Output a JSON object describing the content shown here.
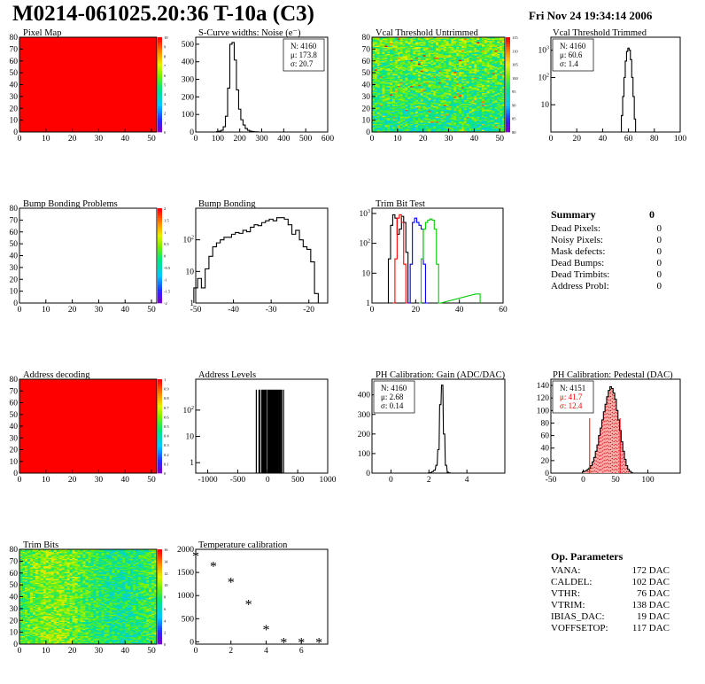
{
  "header": {
    "title": "M0214-061025.20:36 T-10a (C3)",
    "date": "Fri Nov 24 19:34:14 2006"
  },
  "colors": {
    "red": "#ff0000",
    "green": "#00cc00",
    "blue": "#0000ff",
    "pedestal_fill": "#ffaaaa"
  },
  "summary": {
    "title": "Summary",
    "total": "0",
    "rows": [
      {
        "label": "Dead Pixels:",
        "value": "0"
      },
      {
        "label": "Noisy Pixels:",
        "value": "0"
      },
      {
        "label": "Mask defects:",
        "value": "0"
      },
      {
        "label": "Dead Bumps:",
        "value": "0"
      },
      {
        "label": "Dead Trimbits:",
        "value": "0"
      },
      {
        "label": "Address Probl:",
        "value": "0"
      }
    ]
  },
  "op_params": {
    "title": "Op. Parameters",
    "rows": [
      {
        "label": "VANA:",
        "value": "172 DAC"
      },
      {
        "label": "CALDEL:",
        "value": "102 DAC"
      },
      {
        "label": "VTHR:",
        "value": "76 DAC"
      },
      {
        "label": "VTRIM:",
        "value": "138 DAC"
      },
      {
        "label": "IBIAS_DAC:",
        "value": "19 DAC"
      },
      {
        "label": "VOFFSETOP:",
        "value": "117 DAC"
      }
    ]
  },
  "chart_data": [
    {
      "id": "pixel-map",
      "type": "heatmap",
      "title": "Pixel Map",
      "xlim": [
        0,
        52
      ],
      "ylim": [
        0,
        80
      ],
      "xticks": [
        "0",
        "10",
        "20",
        "30",
        "40",
        "50"
      ],
      "yticks": [
        "0",
        "10",
        "20",
        "30",
        "40",
        "50",
        "60",
        "70",
        "80"
      ],
      "fill": "uniform",
      "value": 10,
      "zlim": [
        0,
        10
      ],
      "zticks": [
        "0",
        "1",
        "2",
        "3",
        "4",
        "5",
        "6",
        "7",
        "8",
        "9",
        "10"
      ]
    },
    {
      "id": "scurve-widths",
      "type": "histogram",
      "title": "S-Curve widths: Noise (e⁻)",
      "xlim": [
        0,
        600
      ],
      "ylim": [
        0,
        540
      ],
      "log": false,
      "xticks": [
        "0",
        "100",
        "200",
        "300",
        "400",
        "500",
        "600"
      ],
      "yticks": [
        "0",
        "100",
        "200",
        "300",
        "400",
        "500"
      ],
      "stats": [
        "N: 4160",
        "μ: 173.8",
        "σ: 20.7"
      ],
      "bin_width": 10,
      "x": [
        100,
        110,
        120,
        130,
        140,
        150,
        160,
        170,
        180,
        190,
        200,
        210,
        220,
        230,
        240,
        250,
        260,
        270,
        280,
        290
      ],
      "values": [
        2,
        5,
        10,
        30,
        90,
        250,
        500,
        510,
        410,
        240,
        130,
        70,
        40,
        20,
        10,
        5,
        3,
        1,
        1,
        0
      ]
    },
    {
      "id": "vcal-untrimmed",
      "type": "heatmap",
      "title": "Vcal Threshold Untrimmed",
      "xlim": [
        0,
        52
      ],
      "ylim": [
        0,
        80
      ],
      "xticks": [
        "0",
        "10",
        "20",
        "30",
        "40",
        "50"
      ],
      "yticks": [
        "0",
        "10",
        "20",
        "30",
        "40",
        "50",
        "60",
        "70",
        "80"
      ],
      "fill": "noise",
      "zlim": [
        80,
        115
      ],
      "zticks": [
        "80",
        "85",
        "90",
        "95",
        "100",
        "105",
        "110",
        "115"
      ]
    },
    {
      "id": "vcal-trimmed",
      "type": "histogram",
      "title": "Vcal Threshold Trimmed",
      "xlim": [
        0,
        100
      ],
      "ylim": [
        1,
        3000
      ],
      "log": true,
      "xticks": [
        "0",
        "20",
        "40",
        "60",
        "80",
        "100"
      ],
      "yticks": [
        {
          "v": 10,
          "t": "10"
        },
        {
          "v": 100,
          "t": "10²"
        },
        {
          "v": 1000,
          "t": "10³"
        }
      ],
      "stats": [
        "N: 4160",
        "μ: 60.6",
        "σ:  1.4"
      ],
      "bin_width": 1,
      "x": [
        54,
        55,
        56,
        57,
        58,
        59,
        60,
        61,
        62,
        63,
        64,
        65,
        66
      ],
      "values": [
        1,
        4,
        20,
        100,
        400,
        900,
        1200,
        1000,
        450,
        100,
        20,
        3,
        1
      ]
    },
    {
      "id": "bump-problems",
      "type": "heatmap",
      "title": "Bump Bonding Problems",
      "xlim": [
        0,
        52
      ],
      "ylim": [
        0,
        80
      ],
      "xticks": [
        "0",
        "10",
        "20",
        "30",
        "40",
        "50"
      ],
      "yticks": [
        "0",
        "10",
        "20",
        "30",
        "40",
        "50",
        "60",
        "70",
        "80"
      ],
      "fill": "empty",
      "zlim": [
        -2,
        2
      ],
      "zticks": [
        "-2",
        "-1.5",
        "-1",
        "-0.5",
        "0",
        "0.5",
        "1",
        "1.5",
        "2"
      ]
    },
    {
      "id": "bump-bonding",
      "type": "histogram",
      "title": "Bump Bonding",
      "xlim": [
        -50,
        -15
      ],
      "ylim": [
        1,
        1000
      ],
      "log": true,
      "xticks": [
        "-50",
        "-40",
        "-30",
        "-20"
      ],
      "yticks": [
        {
          "v": 1,
          "t": "1"
        },
        {
          "v": 10,
          "t": "10"
        },
        {
          "v": 100,
          "t": "10²"
        }
      ],
      "bin_width": 1,
      "x": [
        -50,
        -49,
        -48,
        -47,
        -46,
        -45,
        -44,
        -43,
        -42,
        -41,
        -40,
        -39,
        -38,
        -37,
        -36,
        -35,
        -34,
        -33,
        -32,
        -31,
        -30,
        -29,
        -28,
        -27,
        -26,
        -25,
        -24,
        -23,
        -22,
        -21,
        -20,
        -19,
        -18,
        -17
      ],
      "values": [
        3,
        6,
        3,
        12,
        30,
        60,
        80,
        100,
        120,
        120,
        150,
        170,
        160,
        200,
        180,
        250,
        300,
        280,
        350,
        400,
        450,
        400,
        500,
        500,
        450,
        300,
        150,
        200,
        100,
        60,
        50,
        20,
        2,
        1
      ]
    },
    {
      "id": "trim-bit-test",
      "type": "line",
      "title": "Trim Bit Test",
      "xlim": [
        0,
        60
      ],
      "ylim": [
        1,
        1500
      ],
      "log": true,
      "xticks": [
        "0",
        "20",
        "40",
        "60"
      ],
      "yticks": [
        {
          "v": 1,
          "t": "1"
        },
        {
          "v": 10,
          "t": "10"
        },
        {
          "v": 100,
          "t": "10²"
        },
        {
          "v": 1000,
          "t": "10³"
        }
      ],
      "series": [
        {
          "color": "#000000",
          "x": [
            7,
            8,
            9,
            10,
            11,
            12,
            13,
            14,
            15,
            16,
            17
          ],
          "values": [
            1,
            30,
            400,
            900,
            700,
            200,
            300,
            800,
            500,
            50,
            1
          ]
        },
        {
          "color": "#ff0000",
          "x": [
            10,
            11,
            12,
            13,
            14,
            15,
            16
          ],
          "values": [
            1,
            30,
            700,
            900,
            500,
            20,
            1
          ]
        },
        {
          "color": "#0000ff",
          "x": [
            17,
            18,
            19,
            20,
            21,
            22,
            23,
            24,
            25
          ],
          "values": [
            1,
            20,
            500,
            700,
            500,
            400,
            300,
            20,
            1
          ]
        },
        {
          "color": "#00cc00",
          "x": [
            22,
            23,
            24,
            25,
            26,
            27,
            28,
            29,
            30,
            31,
            48,
            49
          ],
          "values": [
            1,
            30,
            300,
            500,
            600,
            650,
            600,
            300,
            20,
            1,
            2,
            2
          ]
        }
      ]
    },
    {
      "id": "address-decoding",
      "type": "heatmap",
      "title": "Address decoding",
      "xlim": [
        0,
        52
      ],
      "ylim": [
        0,
        80
      ],
      "xticks": [
        "0",
        "10",
        "20",
        "30",
        "40",
        "50"
      ],
      "yticks": [
        "0",
        "10",
        "20",
        "30",
        "40",
        "50",
        "60",
        "70",
        "80"
      ],
      "fill": "uniform",
      "value": 1,
      "zlim": [
        0,
        1
      ],
      "zticks": [
        "0",
        "0.1",
        "0.2",
        "0.3",
        "0.4",
        "0.5",
        "0.6",
        "0.7",
        "0.8",
        "0.9",
        "1"
      ]
    },
    {
      "id": "address-levels",
      "type": "histogram",
      "title": "Address Levels",
      "xlim": [
        -1200,
        1000
      ],
      "ylim": [
        0.4,
        1500
      ],
      "log": true,
      "xticks": [
        "-1000",
        "-500",
        "0",
        "500",
        "1000"
      ],
      "yticks": [
        {
          "v": 1,
          "t": "1"
        },
        {
          "v": 10,
          "t": "10"
        },
        {
          "v": 100,
          "t": "10²"
        }
      ],
      "bin_width": 10,
      "spikes": [
        -190,
        -130,
        -100,
        -70,
        -40,
        -20,
        10,
        40,
        70,
        100,
        130,
        160,
        190,
        220
      ],
      "spike_value": 600
    },
    {
      "id": "ph-gain",
      "type": "histogram",
      "title": "PH Calibration: Gain (ADC/DAC)",
      "xlim": [
        -1,
        6
      ],
      "ylim": [
        0,
        480
      ],
      "log": false,
      "xticks": [
        "0",
        "2",
        "4"
      ],
      "yticks": [
        "0",
        "100",
        "200",
        "300",
        "400"
      ],
      "stats": [
        "N: 4160",
        "μ: 2.68",
        "σ: 0.14"
      ],
      "bin_width": 0.07,
      "x": [
        2.0,
        2.1,
        2.2,
        2.3,
        2.4,
        2.5,
        2.6,
        2.7,
        2.8,
        2.9,
        3.0,
        3.1
      ],
      "values": [
        1,
        3,
        8,
        15,
        40,
        120,
        350,
        450,
        200,
        40,
        5,
        1
      ]
    },
    {
      "id": "ph-pedestal",
      "type": "histogram",
      "title": "PH Calibration: Pedestal (DAC)",
      "xlim": [
        -50,
        150
      ],
      "ylim": [
        0,
        150
      ],
      "log": false,
      "xticks": [
        "-50",
        "0",
        "50",
        "100"
      ],
      "yticks": [
        "0",
        "20",
        "40",
        "60",
        "80",
        "100",
        "120",
        "140"
      ],
      "stats": [
        "N: 4151",
        "μ: 41.7",
        "σ: 12.4"
      ],
      "bin_width": 2.5,
      "x": [
        0,
        2.5,
        5,
        7.5,
        10,
        12.5,
        15,
        17.5,
        20,
        22.5,
        25,
        27.5,
        30,
        32.5,
        35,
        37.5,
        40,
        42.5,
        45,
        47.5,
        50,
        52.5,
        55,
        57.5,
        60,
        62.5,
        65,
        67.5,
        70,
        72.5,
        75
      ],
      "values": [
        2,
        3,
        4,
        6,
        8,
        12,
        18,
        25,
        35,
        45,
        60,
        72,
        85,
        98,
        110,
        122,
        132,
        138,
        135,
        128,
        118,
        100,
        85,
        68,
        50,
        35,
        22,
        12,
        6,
        3,
        1
      ],
      "markers": [
        10,
        57
      ]
    },
    {
      "id": "trim-bits",
      "type": "heatmap",
      "title": "Trim Bits",
      "xlim": [
        0,
        52
      ],
      "ylim": [
        0,
        80
      ],
      "xticks": [
        "0",
        "10",
        "20",
        "30",
        "40",
        "50"
      ],
      "yticks": [
        "0",
        "10",
        "20",
        "30",
        "40",
        "50",
        "60",
        "70",
        "80"
      ],
      "fill": "noise2",
      "zlim": [
        0,
        16
      ],
      "zticks": [
        "0",
        "2",
        "4",
        "6",
        "8",
        "10",
        "12",
        "14",
        "16"
      ]
    },
    {
      "id": "temperature-calibration",
      "type": "scatter",
      "title": "Temperature calibration",
      "xlim": [
        0,
        7.5
      ],
      "ylim": [
        -50,
        2000
      ],
      "log": false,
      "xticks": [
        "0",
        "2",
        "4",
        "6"
      ],
      "yticks": [
        "0",
        "500",
        "1000",
        "1500",
        "2000"
      ],
      "x": [
        0,
        1,
        2,
        3,
        4,
        5,
        6,
        7
      ],
      "values": [
        1870,
        1650,
        1300,
        820,
        280,
        0,
        0,
        0
      ]
    }
  ]
}
